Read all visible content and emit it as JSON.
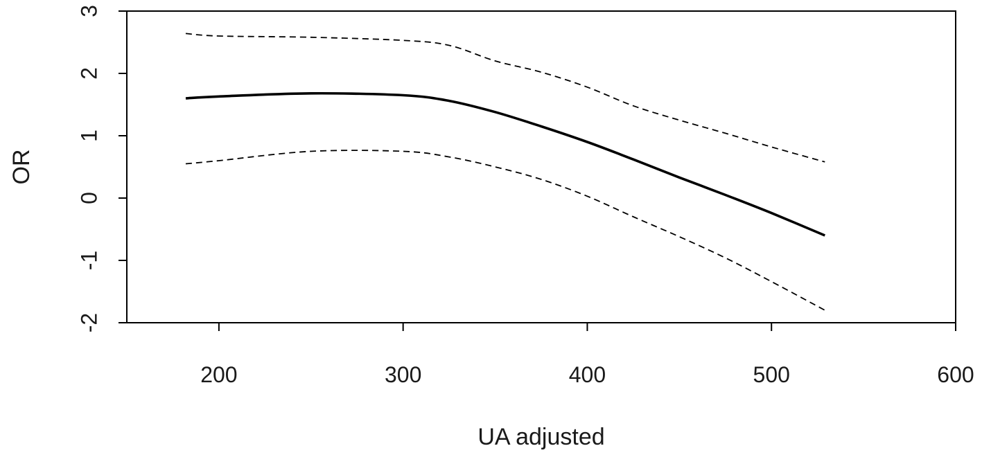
{
  "chart_data": {
    "type": "line",
    "title": "",
    "xlabel": "UA adjusted",
    "ylabel": "OR",
    "xlim": [
      150,
      600
    ],
    "ylim": [
      -2,
      3
    ],
    "xticks": [
      200,
      300,
      400,
      500,
      600
    ],
    "yticks": [
      -2,
      -1,
      0,
      1,
      2,
      3
    ],
    "xtick_labels": [
      "200",
      "300",
      "400",
      "500",
      "600"
    ],
    "ytick_labels": [
      "-2",
      "-1",
      "0",
      "1",
      "2",
      "3"
    ],
    "grid": false,
    "legend": "none",
    "series": [
      {
        "style": "solid",
        "color": "#000000",
        "x": [
          182,
          200,
          250,
          300,
          325,
          350,
          375,
          400,
          425,
          450,
          475,
          500,
          529
        ],
        "y": [
          1.6,
          1.63,
          1.68,
          1.65,
          1.56,
          1.38,
          1.15,
          0.9,
          0.62,
          0.33,
          0.05,
          -0.24,
          -0.6
        ]
      },
      {
        "style": "dashed",
        "color": "#000000",
        "x": [
          182,
          200,
          250,
          300,
          325,
          350,
          375,
          400,
          425,
          450,
          475,
          500,
          529
        ],
        "y": [
          2.64,
          2.6,
          2.58,
          2.53,
          2.45,
          2.2,
          2.02,
          1.78,
          1.48,
          1.25,
          1.04,
          0.82,
          0.58
        ]
      },
      {
        "style": "dashed",
        "color": "#000000",
        "x": [
          182,
          200,
          250,
          300,
          325,
          350,
          375,
          400,
          425,
          450,
          475,
          500,
          529
        ],
        "y": [
          0.55,
          0.6,
          0.75,
          0.75,
          0.66,
          0.5,
          0.3,
          0.03,
          -0.3,
          -0.62,
          -0.96,
          -1.34,
          -1.8
        ]
      }
    ]
  }
}
